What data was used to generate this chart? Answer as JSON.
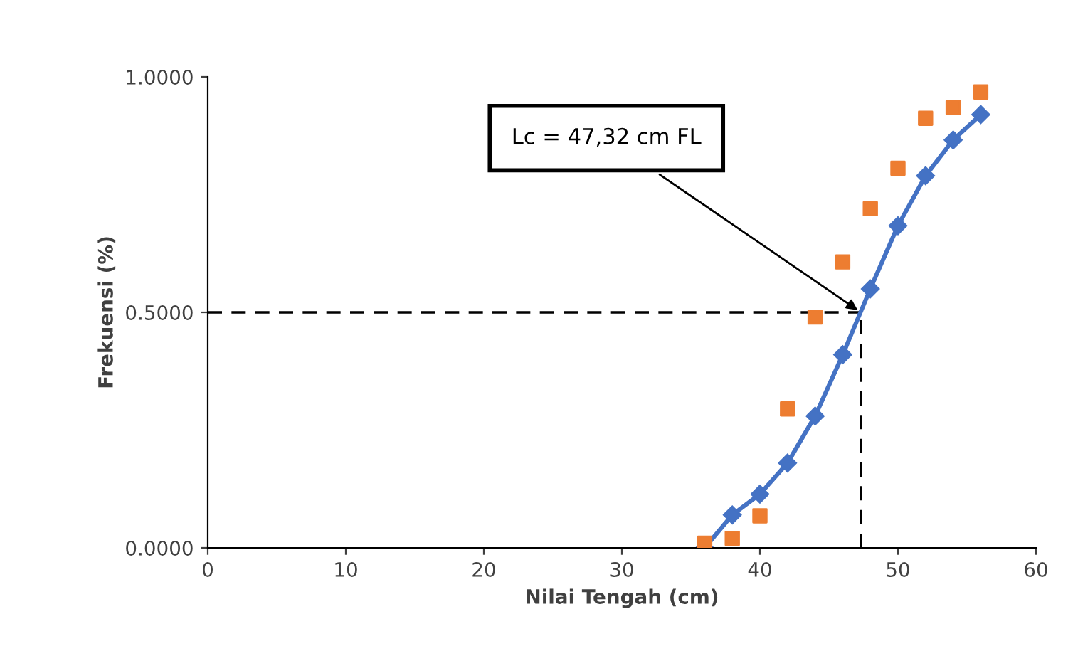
{
  "chart_data": {
    "type": "line",
    "xlabel": "Nilai Tengah (cm)",
    "ylabel": "Frekuensi (%)",
    "x": [
      36,
      38,
      40,
      42,
      44,
      46,
      48,
      50,
      52,
      54,
      56
    ],
    "series": [
      {
        "type": "scatter",
        "color": "#ed7d31",
        "marker": "square",
        "values": [
          0.01,
          0.02,
          0.068,
          0.295,
          0.49,
          0.607,
          0.72,
          0.806,
          0.912,
          0.935,
          0.968
        ]
      },
      {
        "color": "#4472c4",
        "marker": "diamond",
        "line_style": "solid",
        "values": [
          0.0,
          0.07,
          0.114,
          0.18,
          0.28,
          0.41,
          0.55,
          0.684,
          0.79,
          0.866,
          0.92
        ]
      }
    ],
    "ref_lines": [
      {
        "axis": "y",
        "value": 0.5,
        "color": "#000000",
        "line_style": "dashed"
      },
      {
        "axis": "x",
        "value": 47.32,
        "color": "#000000",
        "line_style": "dashed"
      }
    ],
    "annotations": [
      {
        "text": "Lc = 47,32 cm FL",
        "x": 47.32,
        "y": 0.5
      }
    ],
    "xlim": [
      0,
      60
    ],
    "xticks": [
      0,
      10,
      20,
      30,
      40,
      50,
      60
    ],
    "ylim": [
      0,
      1
    ],
    "yticks": [
      {
        "value": 0,
        "label": "0.0000"
      },
      {
        "value": 0.5,
        "label": "0.5000"
      },
      {
        "value": 1,
        "label": "1.0000"
      }
    ],
    "grid": false,
    "legend": false
  }
}
